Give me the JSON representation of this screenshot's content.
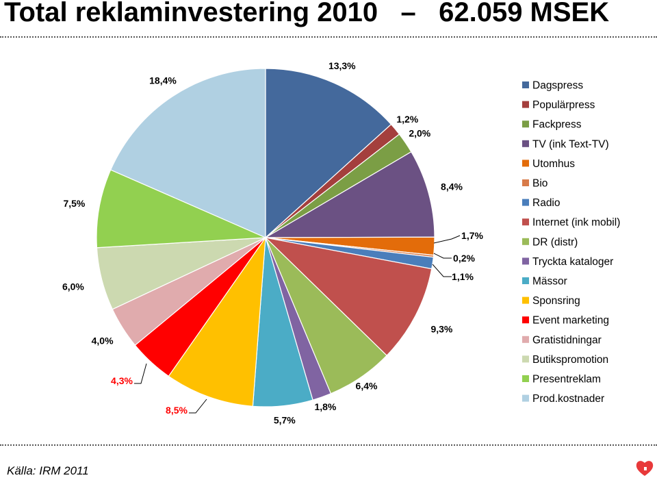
{
  "page": {
    "title": "Total reklaminvestering 2010   –   62.059 MSEK",
    "source": "Källa: IRM 2011"
  },
  "chart_data": {
    "type": "pie",
    "title": "Total reklaminvestering 2010   –   62.059 MSEK",
    "legend_position": "right",
    "slices": [
      {
        "name": "Dagspress",
        "value": 13.3,
        "label": "13,3%",
        "color": "#44699C",
        "label_color": "#000000"
      },
      {
        "name": "Populärpress",
        "value": 1.2,
        "label": "1,2%",
        "color": "#A43F3D",
        "label_color": "#000000"
      },
      {
        "name": "Fackpress",
        "value": 2.0,
        "label": "2,0%",
        "color": "#7B9E45",
        "label_color": "#000000"
      },
      {
        "name": "TV (ink Text-TV)",
        "value": 8.4,
        "label": "8,4%",
        "color": "#6B5183",
        "label_color": "#000000"
      },
      {
        "name": "Utomhus",
        "value": 1.7,
        "label": "1,7%",
        "color": "#E36C0A",
        "label_color": "#000000"
      },
      {
        "name": "Bio",
        "value": 0.2,
        "label": "0,2%",
        "color": "#D87B49",
        "label_color": "#000000"
      },
      {
        "name": "Radio",
        "value": 1.1,
        "label": "1,1%",
        "color": "#4A7EBB",
        "label_color": "#000000"
      },
      {
        "name": "Internet (ink mobil)",
        "value": 9.3,
        "label": "9,3%",
        "color": "#C0504D",
        "label_color": "#000000"
      },
      {
        "name": "DR (distr)",
        "value": 6.4,
        "label": "6,4%",
        "color": "#9BBB59",
        "label_color": "#000000"
      },
      {
        "name": "Tryckta kataloger",
        "value": 1.8,
        "label": "1,8%",
        "color": "#8064A2",
        "label_color": "#000000"
      },
      {
        "name": "Mässor",
        "value": 5.7,
        "label": "5,7%",
        "color": "#4BACC6",
        "label_color": "#000000"
      },
      {
        "name": "Sponsring",
        "value": 8.5,
        "label": "8,5%",
        "color": "#FFC000",
        "label_color": "#FF0000"
      },
      {
        "name": "Event marketing",
        "value": 4.3,
        "label": "4,3%",
        "color": "#FF0000",
        "label_color": "#FF0000"
      },
      {
        "name": "Gratistidningar",
        "value": 4.0,
        "label": "4,0%",
        "color": "#E0ABAD",
        "label_color": "#000000"
      },
      {
        "name": "Butikspromotion",
        "value": 6.0,
        "label": "6,0%",
        "color": "#CCD9B0",
        "label_color": "#000000"
      },
      {
        "name": "Presentreklam",
        "value": 7.5,
        "label": "7,5%",
        "color": "#92D050",
        "label_color": "#000000"
      },
      {
        "name": "Prod.kostnader",
        "value": 18.4,
        "label": "18,4%",
        "color": "#B0D0E2",
        "label_color": "#000000"
      }
    ]
  },
  "logo": {
    "icon": "heart-icon",
    "color": "#E8393A"
  }
}
